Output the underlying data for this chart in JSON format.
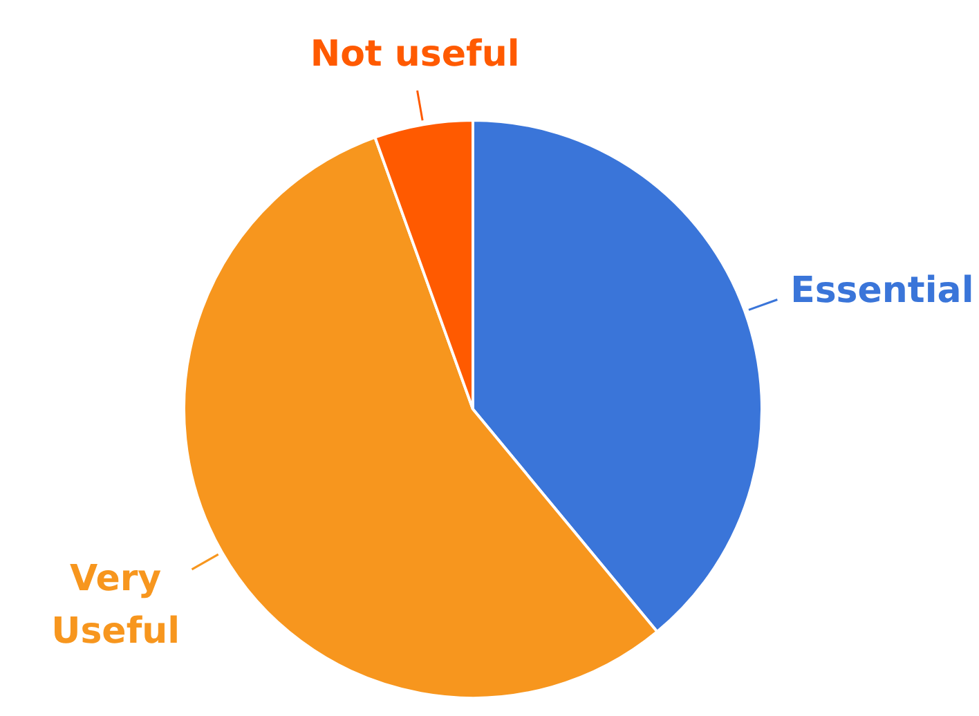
{
  "chart_data": {
    "type": "pie",
    "categories": [
      "Essential",
      "Very Useful",
      "Not useful"
    ],
    "values": [
      39,
      55.5,
      5.5
    ],
    "colors": [
      "#3a75d9",
      "#f7961e",
      "#ff5a00"
    ],
    "legend": false
  }
}
